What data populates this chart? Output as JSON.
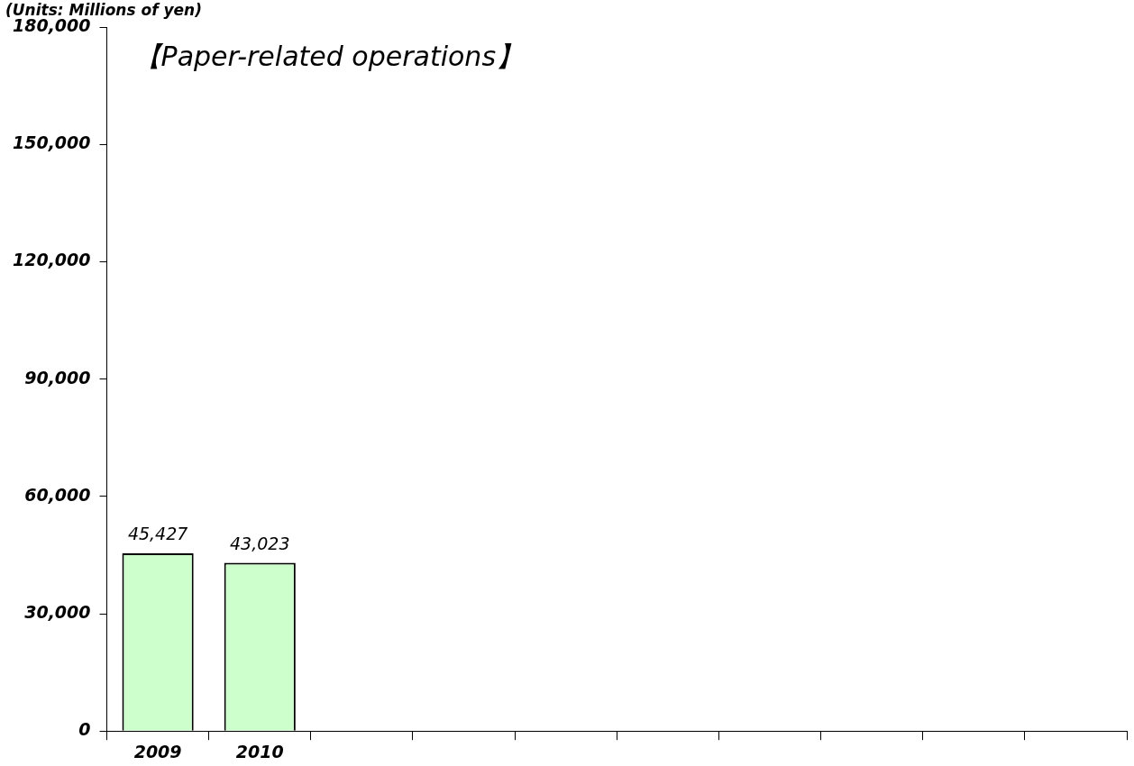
{
  "chart_data": {
    "type": "bar",
    "title": "【Paper-related operations】",
    "ylabel": "(Units: Millions of yen)",
    "categories": [
      "2009",
      "2010",
      null,
      null,
      null,
      null,
      null,
      null,
      null,
      null
    ],
    "values": [
      45427,
      43023,
      null,
      null,
      null,
      null,
      null,
      null,
      null,
      null
    ],
    "value_labels": [
      "45,427",
      "43,023",
      null,
      null,
      null,
      null,
      null,
      null,
      null,
      null
    ],
    "color": "#ccffcc",
    "ylim": [
      0,
      180000
    ],
    "yticks": [
      {
        "value": 0,
        "label": "0"
      },
      {
        "value": 30000,
        "label": "30,000"
      },
      {
        "value": 60000,
        "label": "60,000"
      },
      {
        "value": 90000,
        "label": "90,000"
      },
      {
        "value": 120000,
        "label": "120,000"
      },
      {
        "value": 150000,
        "label": "150,000"
      },
      {
        "value": 180000,
        "label": "180,000"
      }
    ],
    "grid": false,
    "legend": false
  }
}
